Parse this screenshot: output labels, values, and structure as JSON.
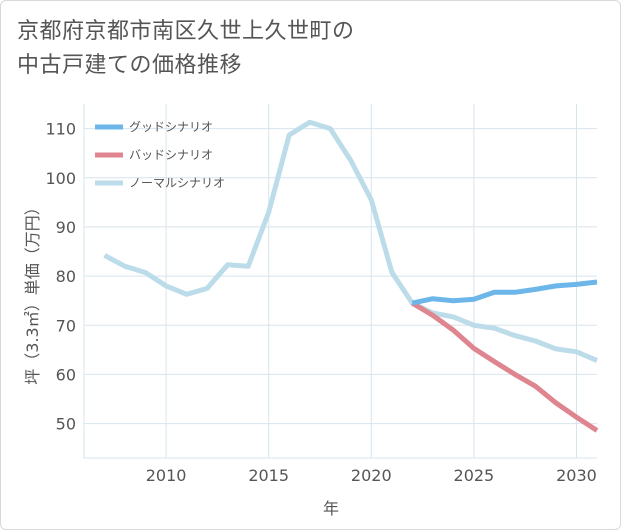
{
  "title": {
    "line1": "京都府京都市南区久世上久世町の",
    "line2": "中古戸建ての価格推移"
  },
  "chart_data": {
    "type": "line",
    "xlabel": "年",
    "ylabel": "坪（3.3㎡）単価（万円）",
    "xlim": [
      2006,
      2031
    ],
    "ylim": [
      43,
      115
    ],
    "xticks": [
      2010,
      2015,
      2020,
      2025,
      2030
    ],
    "yticks": [
      50,
      60,
      70,
      80,
      90,
      100,
      110
    ],
    "grid": true,
    "legend_position": "top-left",
    "series": [
      {
        "name": "グッドシナリオ",
        "color": "#6cb6ea",
        "x": [
          2022,
          2023,
          2024,
          2025,
          2026,
          2027,
          2028,
          2029,
          2030,
          2031
        ],
        "values": [
          74.5,
          75.4,
          75.0,
          75.3,
          76.7,
          76.7,
          77.3,
          78.0,
          78.3,
          78.8
        ]
      },
      {
        "name": "バッドシナリオ",
        "color": "#de8590",
        "x": [
          2022,
          2023,
          2024,
          2025,
          2026,
          2027,
          2028,
          2029,
          2030,
          2031
        ],
        "values": [
          74.5,
          72.0,
          69.0,
          65.3,
          62.6,
          60.0,
          57.6,
          54.2,
          51.3,
          48.6
        ]
      },
      {
        "name": "ノーマルシナリオ",
        "color": "#bcdcea",
        "x": [
          2007,
          2008,
          2009,
          2010,
          2011,
          2012,
          2013,
          2014,
          2015,
          2016,
          2017,
          2018,
          2019,
          2020,
          2021,
          2022,
          2023,
          2024,
          2025,
          2026,
          2027,
          2028,
          2029,
          2030,
          2031
        ],
        "values": [
          84.2,
          82.0,
          80.7,
          78.0,
          76.3,
          77.5,
          82.3,
          82.0,
          93.0,
          108.7,
          111.3,
          110.0,
          103.5,
          95.5,
          80.8,
          74.5,
          72.5,
          71.7,
          70.0,
          69.4,
          67.9,
          66.8,
          65.2,
          64.6,
          62.8
        ]
      }
    ]
  }
}
